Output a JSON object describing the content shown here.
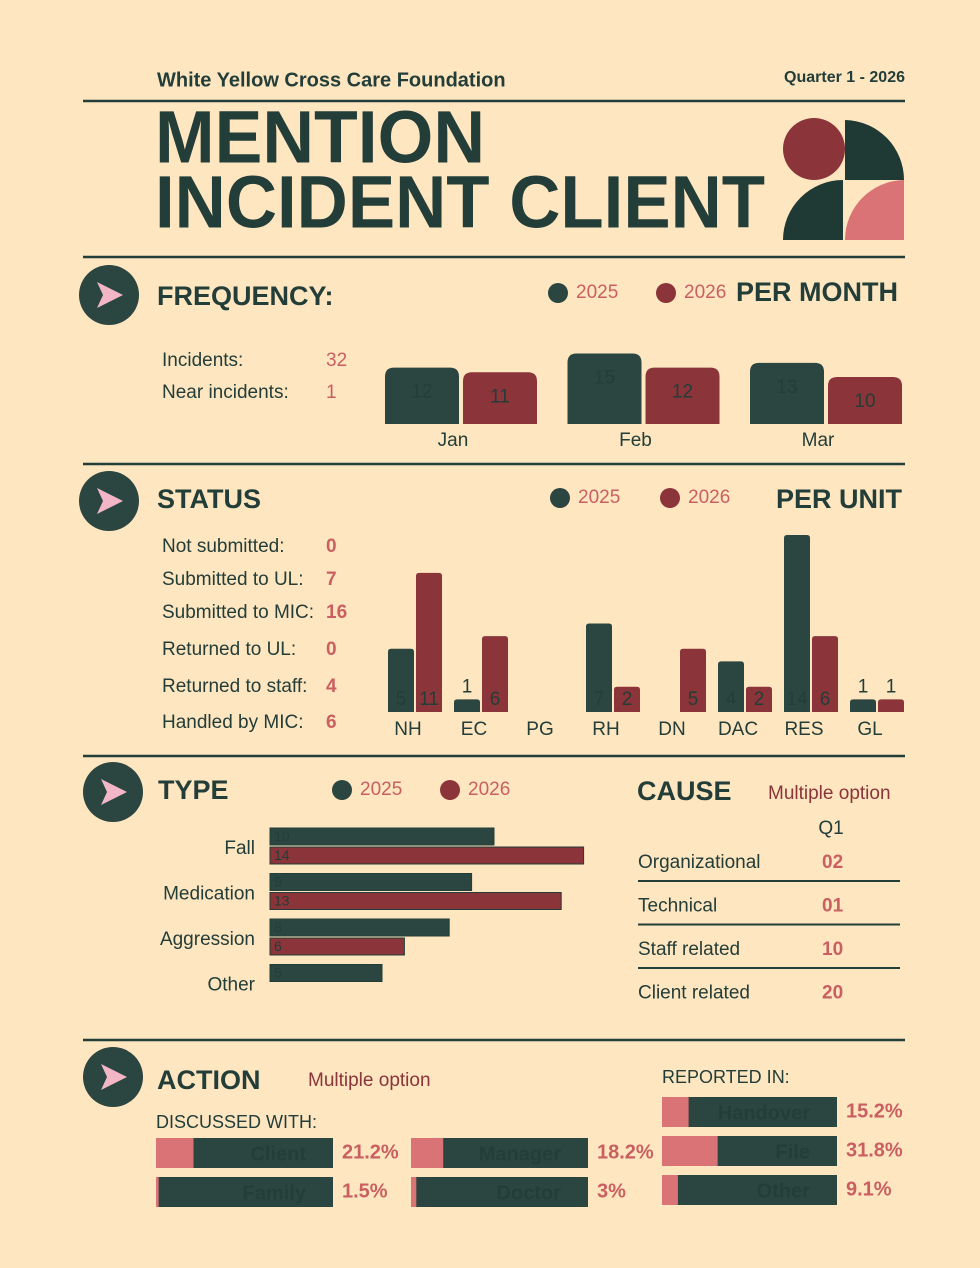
{
  "header": {
    "org": "White Yellow Cross Care Foundation",
    "quarter": "Quarter 1 - 2026",
    "title_lines": [
      "MENTION",
      "INCIDENT CLIENT"
    ]
  },
  "frequency": {
    "heading": "FREQUENCY:",
    "stats": [
      {
        "label": "Incidents:",
        "value": 32
      },
      {
        "label": "Near incidents:",
        "value": 1
      }
    ]
  },
  "status": {
    "heading": "STATUS",
    "stats": [
      {
        "label": "Not submitted:",
        "value": 0
      },
      {
        "label": "Submitted to UL:",
        "value": 7
      },
      {
        "label": "Submitted to MIC:",
        "value": 16
      },
      {
        "label": "Returned to UL:",
        "value": 0
      },
      {
        "label": "Returned to staff:",
        "value": 4
      },
      {
        "label": "Handled by MIC:",
        "value": 6
      }
    ]
  },
  "type": {
    "heading": "TYPE"
  },
  "cause": {
    "heading": "CAUSE",
    "note": "Multiple option",
    "column": "Q1",
    "rows": [
      {
        "label": "Organizational",
        "value": "02"
      },
      {
        "label": "Technical",
        "value": "01"
      },
      {
        "label": "Staff related",
        "value": "10"
      },
      {
        "label": "Client related",
        "value": "20"
      }
    ]
  },
  "action": {
    "heading": "ACTION",
    "note": "Multiple option"
  },
  "chart_data": [
    {
      "type": "bar",
      "title": "PER MONTH",
      "categories": [
        "Jan",
        "Feb",
        "Mar"
      ],
      "ylim": [
        0,
        20
      ],
      "series": [
        {
          "name": "2025",
          "color": "#2b4540",
          "values": [
            12,
            15,
            13
          ]
        },
        {
          "name": "2026",
          "color": "#8b3439",
          "values": [
            11,
            12,
            10
          ]
        }
      ]
    },
    {
      "type": "bar",
      "title": "PER UNIT",
      "categories": [
        "NH",
        "EC",
        "PG",
        "RH",
        "DN",
        "DAC",
        "RES",
        "GL"
      ],
      "ylim": [
        0,
        14
      ],
      "series": [
        {
          "name": "2025",
          "color": "#2b4540",
          "values": [
            5,
            1,
            null,
            7,
            null,
            4,
            14,
            1
          ]
        },
        {
          "name": "2026",
          "color": "#8b3439",
          "values": [
            11,
            6,
            null,
            2,
            5,
            2,
            6,
            1
          ]
        }
      ]
    },
    {
      "type": "hbar",
      "categories": [
        "Fall",
        "Medication",
        "Aggression",
        "Other"
      ],
      "xlim": [
        0,
        14
      ],
      "series": [
        {
          "name": "2025",
          "color": "#2b4540",
          "values": [
            10,
            9,
            8,
            5
          ]
        },
        {
          "name": "2026",
          "color": "#8b3439",
          "values": [
            14,
            13,
            6,
            null
          ]
        }
      ]
    },
    {
      "type": "progress",
      "title": "DISCUSSED WITH:",
      "categories": [
        "Client",
        "Family",
        "Manager",
        "Doctor"
      ],
      "values": [
        21.2,
        1.5,
        18.2,
        3
      ],
      "value_labels": [
        "21.2%",
        "1.5%",
        "18.2%",
        "3%"
      ],
      "xlim": [
        0,
        100
      ],
      "color": "#d97375",
      "background_color": "#2b4540"
    },
    {
      "type": "progress",
      "title": "REPORTED IN:",
      "categories": [
        "Handover",
        "File",
        "Other"
      ],
      "values": [
        15.2,
        31.8,
        9.1
      ],
      "value_labels": [
        "15.2%",
        "31.8%",
        "9.1%"
      ],
      "xlim": [
        0,
        100
      ],
      "color": "#d97375",
      "background_color": "#2b4540"
    }
  ]
}
